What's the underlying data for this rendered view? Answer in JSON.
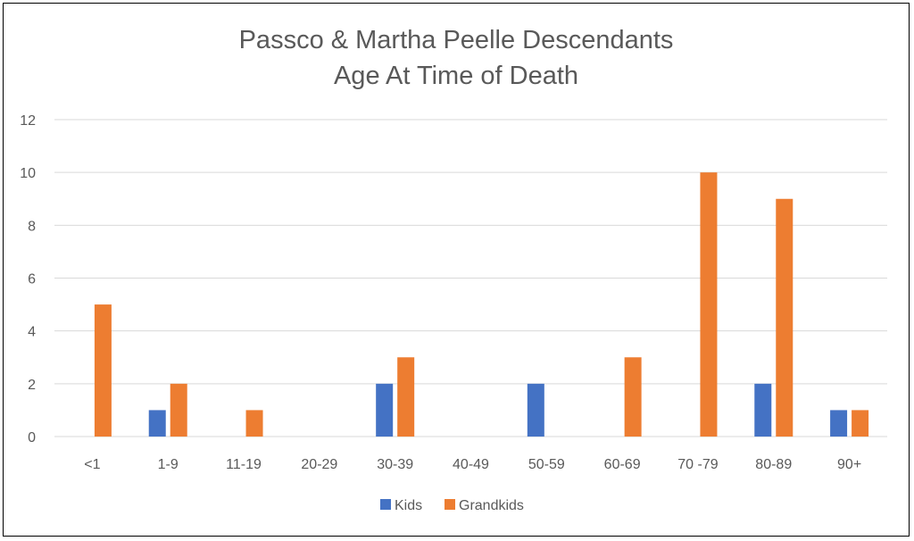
{
  "chart_data": {
    "type": "bar",
    "title": [
      "Passco & Martha Peelle Descendants",
      "Age At Time of Death"
    ],
    "categories": [
      "<1",
      "1-9",
      "11-19",
      "20-29",
      "30-39",
      "40-49",
      "50-59",
      "60-69",
      "70 -79",
      "80-89",
      "90+"
    ],
    "series": [
      {
        "name": "Kids",
        "color": "#4472C4",
        "values": [
          0,
          1,
          0,
          0,
          2,
          0,
          2,
          0,
          0,
          2,
          1
        ]
      },
      {
        "name": "Grandkids",
        "color": "#ED7D31",
        "values": [
          5,
          2,
          1,
          0,
          3,
          0,
          0,
          3,
          10,
          9,
          1
        ]
      }
    ],
    "y_ticks": [
      "0",
      "2",
      "4",
      "6",
      "8",
      "10",
      "12"
    ],
    "ylim": [
      0,
      12
    ],
    "grid": true,
    "legend_position": "bottom",
    "gridline_color": "#D9D9D9"
  }
}
